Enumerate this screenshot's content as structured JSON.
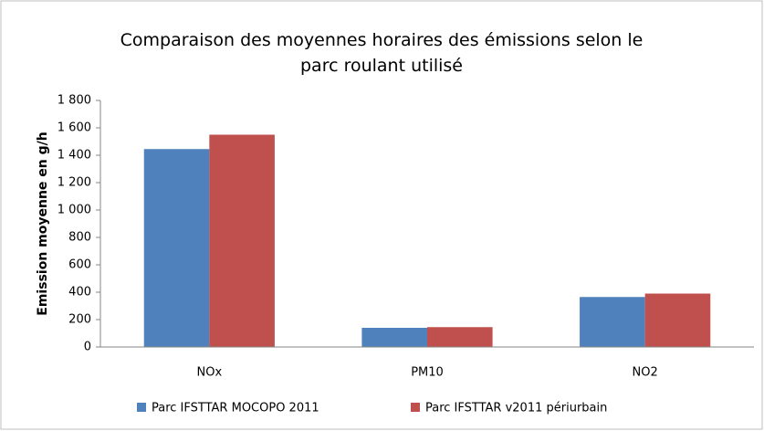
{
  "chart_data": {
    "type": "bar",
    "title": "Comparaison des moyennes horaires des émissions selon le parc roulant utilisé",
    "y_label": "Emission moyenne en g/h",
    "categories": [
      "NOx",
      "PM10",
      "NO2"
    ],
    "series": [
      {
        "name": "Parc IFSTTAR MOCOPO 2011",
        "color": "#4f81bd",
        "values": [
          1445,
          140,
          365
        ]
      },
      {
        "name": "Parc IFSTTAR v2011 périurbain",
        "color": "#c0504d",
        "values": [
          1550,
          145,
          390
        ]
      }
    ],
    "ylim": [
      0,
      1800
    ],
    "yticks": [
      0,
      200,
      400,
      600,
      800,
      {
        "value": 1000,
        "label": "1 000"
      },
      {
        "value": 1200,
        "label": "1 200"
      },
      {
        "value": 1400,
        "label": "1 400"
      },
      {
        "value": 1600,
        "label": "1 600"
      },
      {
        "value": 1800,
        "label": "1 800"
      }
    ],
    "grid": false,
    "legend": "bottom"
  }
}
